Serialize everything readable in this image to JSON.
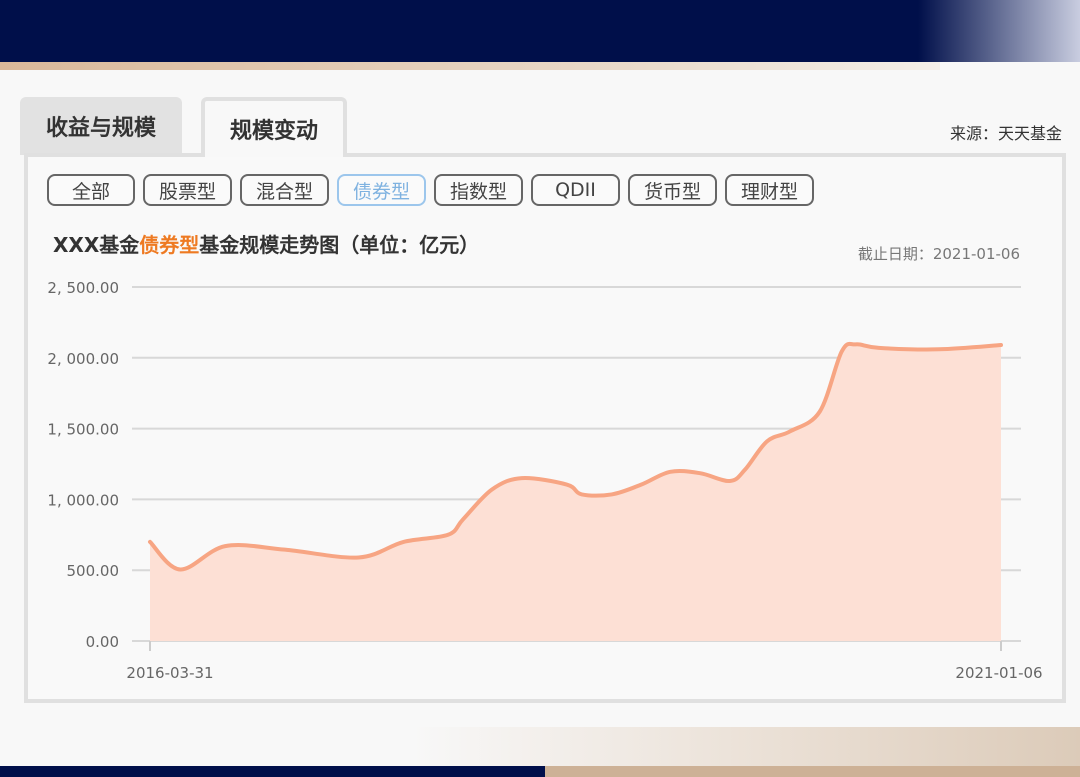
{
  "tabs": [
    {
      "label": "收益与规模",
      "active": false
    },
    {
      "label": "规模变动",
      "active": true
    }
  ],
  "source": "来源：天天基金",
  "filters": [
    {
      "label": "全部",
      "active": false
    },
    {
      "label": "股票型",
      "active": false
    },
    {
      "label": "混合型",
      "active": false
    },
    {
      "label": "债券型",
      "active": true
    },
    {
      "label": "指数型",
      "active": false
    },
    {
      "label": "QDII",
      "active": false
    },
    {
      "label": "货币型",
      "active": false
    },
    {
      "label": "理财型",
      "active": false
    }
  ],
  "chart_title": {
    "prefix": "XXX基金",
    "highlight": "债券型",
    "suffix": "基金规模走势图（单位：亿元）"
  },
  "as_of": "截止日期：2021-01-06",
  "colors": {
    "accent": "#ee7a22",
    "line": "#f7a583",
    "fill": "#fde0d5",
    "active_filter": "#7fb2e0",
    "header": "#000f4a"
  },
  "chart_data": {
    "type": "area",
    "title": "XXX基金债券型基金规模走势图（单位：亿元）",
    "ylim": [
      0,
      2500
    ],
    "yticks": [
      0,
      500,
      1000,
      1500,
      2000,
      2500
    ],
    "ytick_labels": [
      "0.00",
      "500.00",
      "1, 000.00",
      "1, 500.00",
      "2, 000.00",
      "2, 500.00"
    ],
    "xtick_labels": [
      "2016-03-31",
      "2021-01-06"
    ],
    "grid": true,
    "x": [
      "2016-03-31",
      "2016-06-01",
      "2016-09-01",
      "2017-01-01",
      "2017-06-01",
      "2017-09-01",
      "2017-12-01",
      "2018-01-01",
      "2018-03-01",
      "2018-05-01",
      "2018-08-01",
      "2018-09-01",
      "2018-11-01",
      "2019-01-01",
      "2019-03-01",
      "2019-05-01",
      "2019-07-01",
      "2019-08-01",
      "2019-09-15",
      "2019-11-01",
      "2020-01-01",
      "2020-02-15",
      "2020-03-15",
      "2020-05-01",
      "2020-09-01",
      "2021-01-06"
    ],
    "values": [
      700,
      505,
      670,
      645,
      590,
      700,
      750,
      860,
      1070,
      1150,
      1105,
      1035,
      1035,
      1105,
      1195,
      1185,
      1130,
      1210,
      1410,
      1480,
      1620,
      2045,
      2095,
      2070,
      2060,
      2090
    ]
  }
}
